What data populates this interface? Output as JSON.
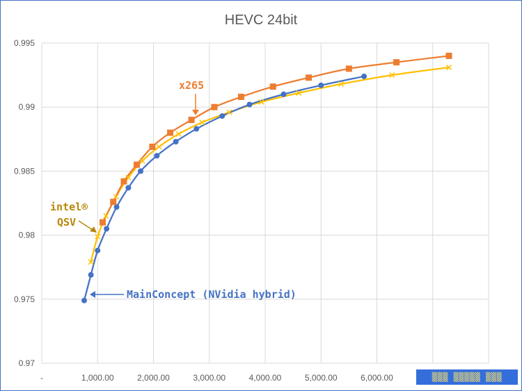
{
  "chart_data": {
    "type": "line",
    "title": "HEVC 24bit",
    "xlabel": "",
    "ylabel": "",
    "xlim": [
      0,
      8000
    ],
    "ylim": [
      0.97,
      0.995
    ],
    "x_ticks": [
      0,
      1000,
      2000,
      3000,
      4000,
      5000,
      6000
    ],
    "x_tick_labels": [
      "-",
      "1,000.00",
      "2,000.00",
      "3,000.00",
      "4,000.00",
      "5,000.00",
      "6,000.00"
    ],
    "y_ticks": [
      0.97,
      0.975,
      0.98,
      0.985,
      0.99,
      0.995
    ],
    "y_tick_labels": [
      "0.97",
      "0.975",
      "0.98",
      "0.985",
      "0.99",
      "0.995"
    ],
    "grid": true,
    "legend": "none",
    "series": [
      {
        "name": "MainConcept (NVidia hybrid)",
        "color": "#4472c4",
        "marker": "circle",
        "x": [
          760,
          880,
          1000,
          1160,
          1340,
          1550,
          1770,
          2060,
          2400,
          2770,
          3230,
          3720,
          4330,
          5000,
          5770
        ],
        "y": [
          0.9749,
          0.9769,
          0.9788,
          0.9805,
          0.9822,
          0.9837,
          0.985,
          0.9862,
          0.9873,
          0.9883,
          0.9893,
          0.9902,
          0.991,
          0.9917,
          0.9924
        ]
      },
      {
        "name": "x265",
        "color": "#ed7d31",
        "marker": "square",
        "x": [
          1090,
          1280,
          1470,
          1700,
          1980,
          2300,
          2680,
          3090,
          3570,
          4140,
          4780,
          5500,
          6350,
          7290
        ],
        "y": [
          0.981,
          0.9826,
          0.9842,
          0.9855,
          0.9869,
          0.988,
          0.989,
          0.99,
          0.9908,
          0.9916,
          0.9923,
          0.993,
          0.9935,
          0.994
        ]
      },
      {
        "name": "intel® QSV",
        "color": "#ffc000",
        "marker": "x",
        "x": [
          880,
          1000,
          1150,
          1330,
          1550,
          1800,
          2100,
          2450,
          2870,
          3360,
          3930,
          4600,
          5360,
          6270,
          7290
        ],
        "y": [
          0.9779,
          0.9799,
          0.9815,
          0.983,
          0.9845,
          0.9858,
          0.9869,
          0.9879,
          0.9888,
          0.9896,
          0.9904,
          0.9911,
          0.9918,
          0.9925,
          0.9931
        ]
      }
    ],
    "annotations": [
      {
        "text": "x265",
        "color": "#ed7d31"
      },
      {
        "lines": [
          "intel®",
          "QSV"
        ],
        "color": "#b8860b"
      },
      {
        "text": "MainConcept (NVidia hybrid)",
        "color": "#4472c4"
      }
    ]
  }
}
